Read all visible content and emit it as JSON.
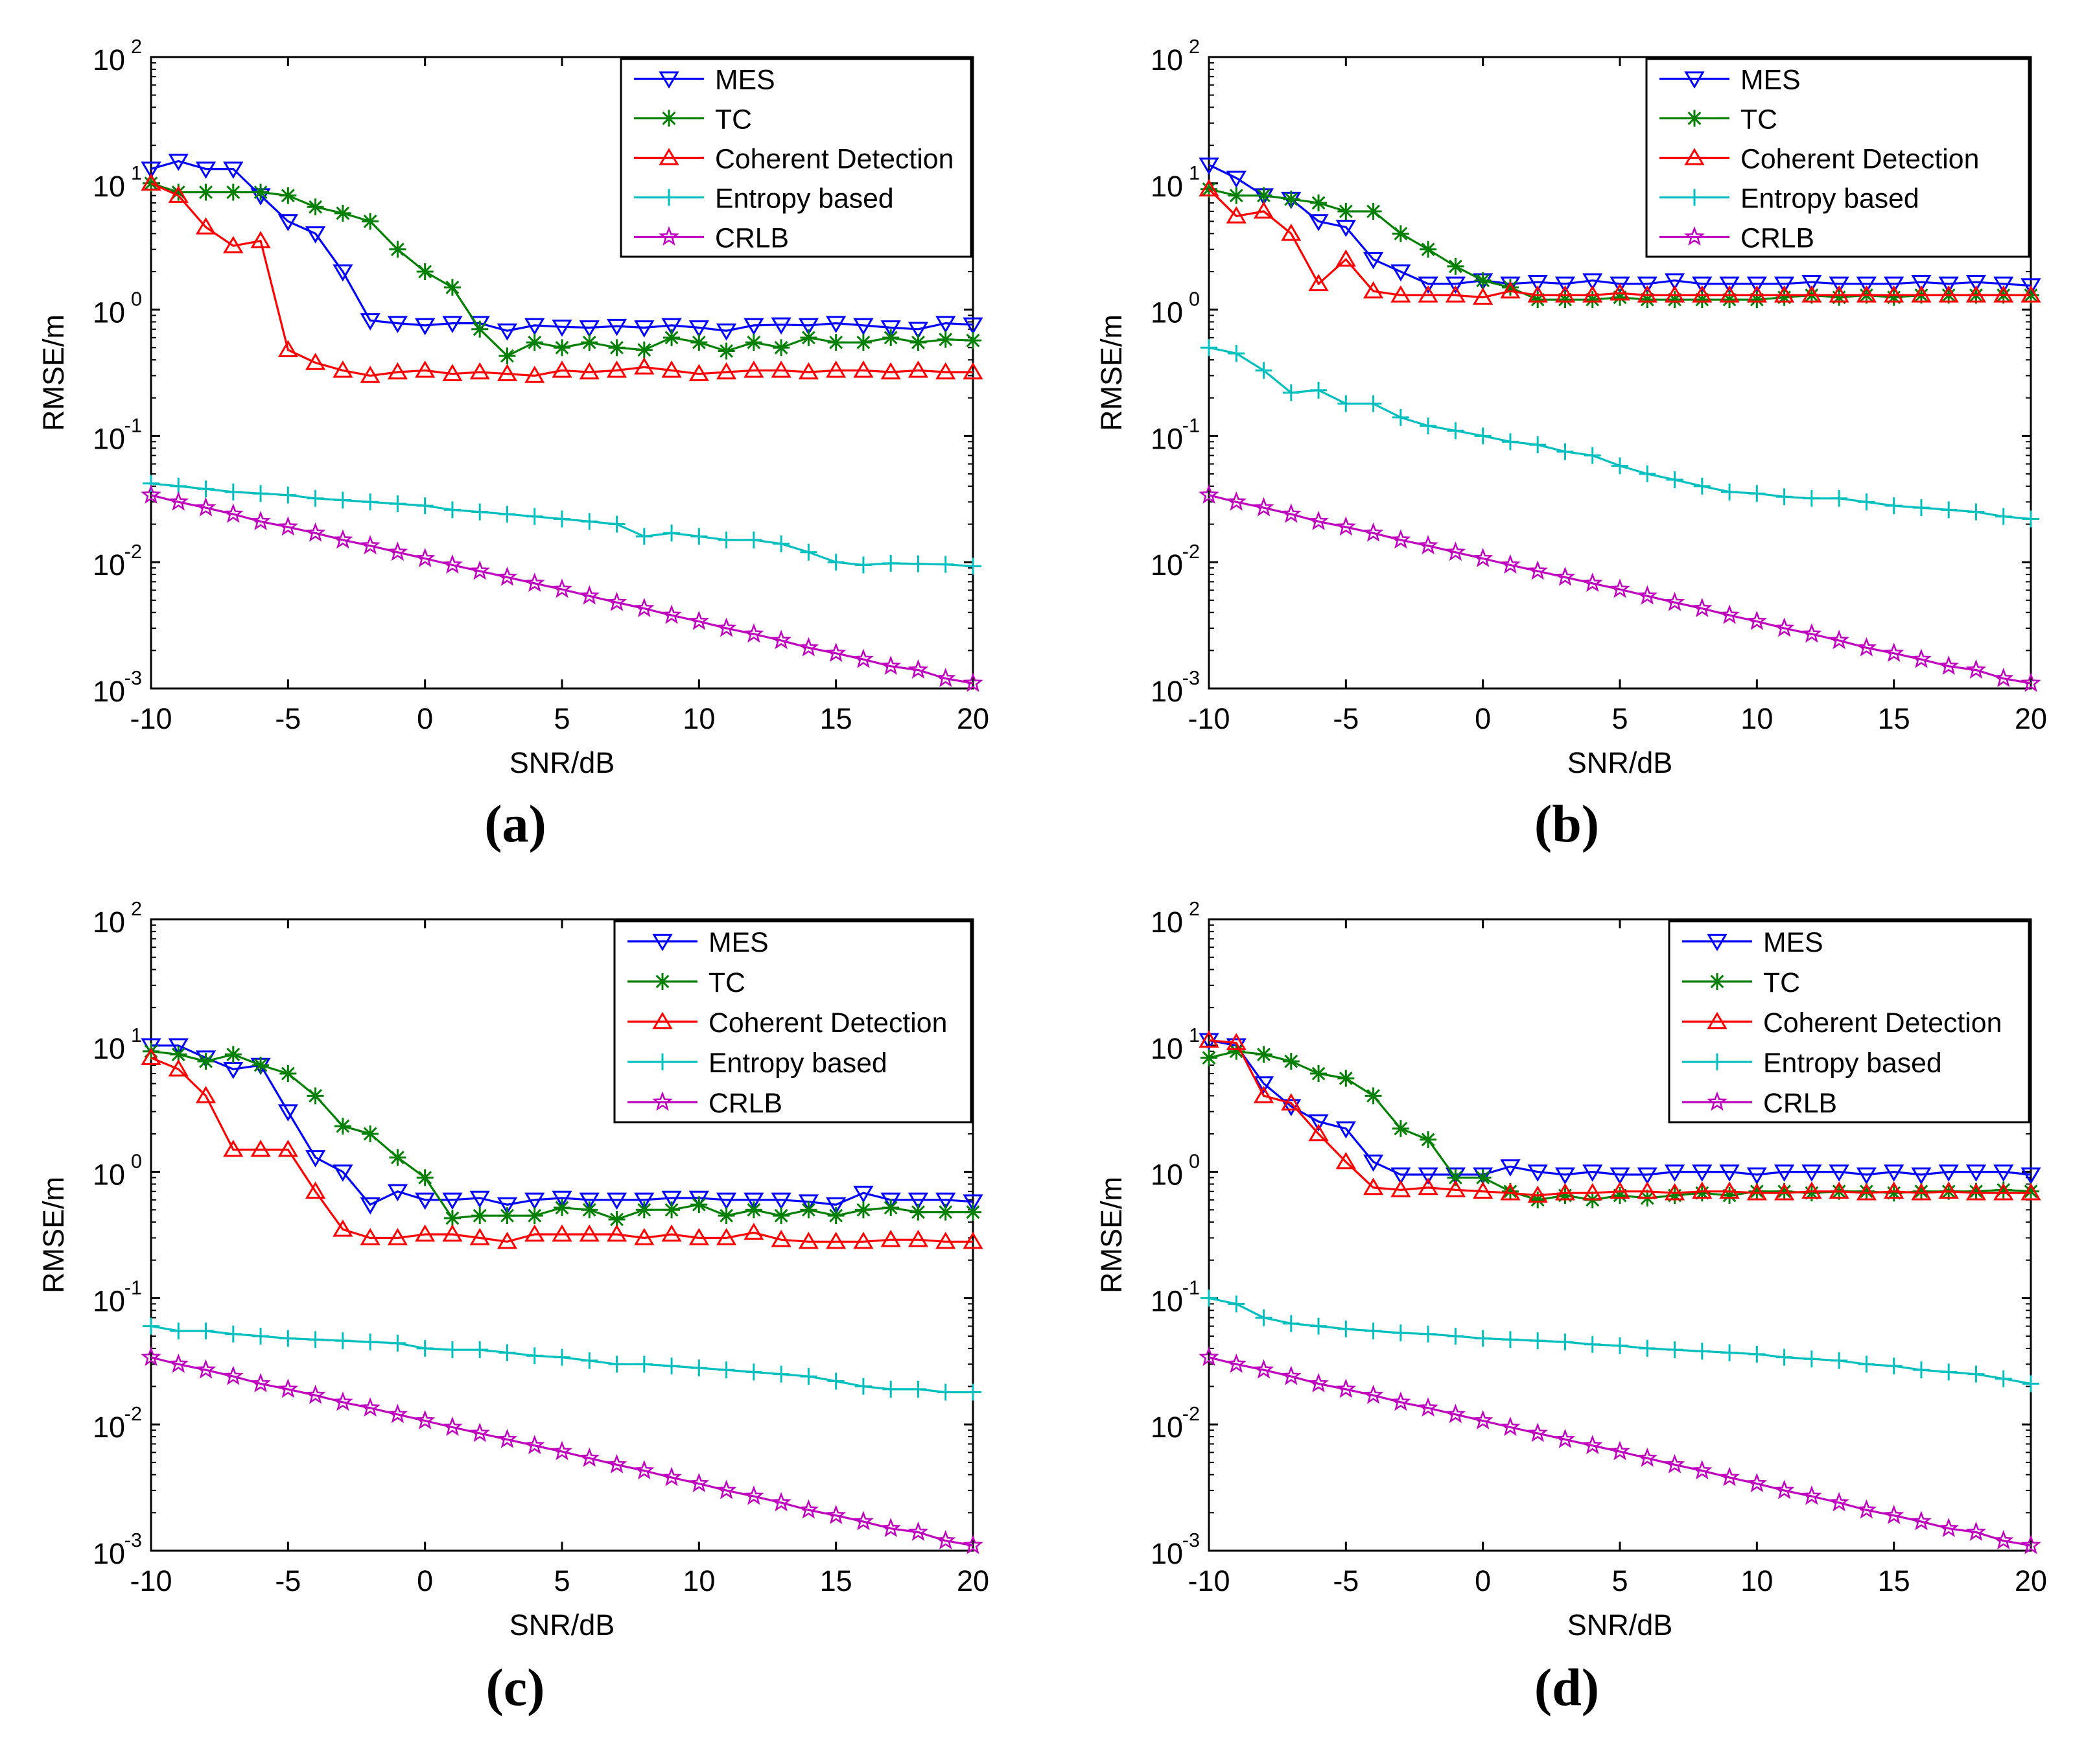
{
  "figure": {
    "panels": [
      "(a)",
      "(b)",
      "(c)",
      "(d)"
    ]
  },
  "series_styles": {
    "MES": {
      "color": "#0000ff",
      "marker": "triangle-down"
    },
    "TC": {
      "color": "#008000",
      "marker": "asterisk"
    },
    "Coherent Detection": {
      "color": "#ff0000",
      "marker": "triangle-up"
    },
    "Entropy based": {
      "color": "#00bfbf",
      "marker": "plus"
    },
    "CRLB": {
      "color": "#bf00bf",
      "marker": "pentagram"
    }
  },
  "chart_data": [
    {
      "panel": "(a)",
      "type": "line",
      "xlabel": "SNR/dB",
      "ylabel": "RMSE/m",
      "yscale": "log",
      "xlim": [
        -10,
        20
      ],
      "ylim": [
        0.001,
        100
      ],
      "xticks": [
        "-10",
        "-5",
        "0",
        "5",
        "10",
        "15",
        "20"
      ],
      "yticks": [
        {
          "base": "10",
          "exp": "-3"
        },
        {
          "base": "10",
          "exp": "-2"
        },
        {
          "base": "10",
          "exp": "-1"
        },
        {
          "base": "10",
          "exp": "0"
        },
        {
          "base": "10",
          "exp": "1"
        },
        {
          "base": "10",
          "exp": "2"
        }
      ],
      "legend_position": "top-right",
      "x": [
        -10,
        -9,
        -8,
        -7,
        -6,
        -5,
        -4,
        -3,
        -2,
        -1,
        0,
        1,
        2,
        3,
        4,
        5,
        6,
        7,
        8,
        9,
        10,
        11,
        12,
        13,
        14,
        15,
        16,
        17,
        18,
        19,
        20
      ],
      "series": [
        {
          "name": "MES",
          "values": [
            13,
            15,
            13,
            13,
            8,
            5,
            4,
            2,
            0.82,
            0.78,
            0.75,
            0.78,
            0.78,
            0.68,
            0.75,
            0.73,
            0.72,
            0.74,
            0.72,
            0.75,
            0.72,
            0.68,
            0.75,
            0.76,
            0.75,
            0.78,
            0.75,
            0.72,
            0.7,
            0.78,
            0.76
          ]
        },
        {
          "name": "TC",
          "values": [
            10,
            8.5,
            8.5,
            8.5,
            8.5,
            8,
            6.5,
            5.8,
            5,
            3,
            2,
            1.5,
            0.7,
            0.43,
            0.55,
            0.5,
            0.55,
            0.5,
            0.48,
            0.6,
            0.55,
            0.47,
            0.55,
            0.5,
            0.6,
            0.55,
            0.55,
            0.6,
            0.55,
            0.58,
            0.57
          ]
        },
        {
          "name": "Coherent Detection",
          "values": [
            10,
            8,
            4.5,
            3.2,
            3.5,
            0.48,
            0.38,
            0.33,
            0.3,
            0.32,
            0.33,
            0.31,
            0.32,
            0.31,
            0.3,
            0.33,
            0.32,
            0.33,
            0.35,
            0.33,
            0.31,
            0.32,
            0.33,
            0.33,
            0.32,
            0.33,
            0.33,
            0.32,
            0.33,
            0.32,
            0.32
          ]
        },
        {
          "name": "Entropy based",
          "values": [
            0.042,
            0.04,
            0.038,
            0.036,
            0.035,
            0.034,
            0.032,
            0.031,
            0.03,
            0.029,
            0.028,
            0.026,
            0.025,
            0.024,
            0.023,
            0.022,
            0.021,
            0.02,
            0.016,
            0.017,
            0.016,
            0.015,
            0.015,
            0.014,
            0.012,
            0.01,
            0.0095,
            0.0098,
            0.0097,
            0.0096,
            0.0093
          ]
        },
        {
          "name": "CRLB",
          "values": [
            0.034,
            0.03,
            0.027,
            0.024,
            0.021,
            0.019,
            0.017,
            0.015,
            0.0135,
            0.012,
            0.0107,
            0.0095,
            0.0085,
            0.0076,
            0.0068,
            0.0061,
            0.0054,
            0.0048,
            0.0043,
            0.0038,
            0.0034,
            0.003,
            0.0027,
            0.0024,
            0.0021,
            0.0019,
            0.0017,
            0.0015,
            0.0014,
            0.0012,
            0.0011
          ]
        }
      ]
    },
    {
      "panel": "(b)",
      "type": "line",
      "xlabel": "SNR/dB",
      "ylabel": "RMSE/m",
      "yscale": "log",
      "xlim": [
        -10,
        20
      ],
      "ylim": [
        0.001,
        100
      ],
      "xticks": [
        "-10",
        "-5",
        "0",
        "5",
        "10",
        "15",
        "20"
      ],
      "yticks": [
        {
          "base": "10",
          "exp": "-3"
        },
        {
          "base": "10",
          "exp": "-2"
        },
        {
          "base": "10",
          "exp": "-1"
        },
        {
          "base": "10",
          "exp": "0"
        },
        {
          "base": "10",
          "exp": "1"
        },
        {
          "base": "10",
          "exp": "2"
        }
      ],
      "legend_position": "top-right",
      "x": [
        -10,
        -9,
        -8,
        -7,
        -6,
        -5,
        -4,
        -3,
        -2,
        -1,
        0,
        1,
        2,
        3,
        4,
        5,
        6,
        7,
        8,
        9,
        10,
        11,
        12,
        13,
        14,
        15,
        16,
        17,
        18,
        19,
        20
      ],
      "series": [
        {
          "name": "MES",
          "values": [
            14,
            11,
            8,
            7.5,
            5,
            4.5,
            2.5,
            2,
            1.6,
            1.6,
            1.7,
            1.6,
            1.65,
            1.6,
            1.7,
            1.6,
            1.6,
            1.7,
            1.6,
            1.6,
            1.6,
            1.6,
            1.65,
            1.6,
            1.6,
            1.6,
            1.65,
            1.6,
            1.65,
            1.6,
            1.55
          ]
        },
        {
          "name": "TC",
          "values": [
            9,
            8,
            8,
            7.5,
            7,
            6,
            6,
            4,
            3,
            2.2,
            1.7,
            1.5,
            1.2,
            1.2,
            1.2,
            1.25,
            1.2,
            1.2,
            1.2,
            1.2,
            1.2,
            1.25,
            1.3,
            1.25,
            1.3,
            1.25,
            1.3,
            1.3,
            1.3,
            1.3,
            1.3
          ]
        },
        {
          "name": "Coherent Detection",
          "values": [
            9,
            5.5,
            6,
            4,
            1.6,
            2.5,
            1.4,
            1.3,
            1.3,
            1.3,
            1.25,
            1.4,
            1.3,
            1.3,
            1.3,
            1.35,
            1.3,
            1.3,
            1.3,
            1.3,
            1.3,
            1.3,
            1.3,
            1.3,
            1.3,
            1.3,
            1.3,
            1.3,
            1.3,
            1.3,
            1.3
          ]
        },
        {
          "name": "Entropy based",
          "values": [
            0.5,
            0.45,
            0.33,
            0.22,
            0.23,
            0.18,
            0.18,
            0.14,
            0.12,
            0.11,
            0.1,
            0.09,
            0.085,
            0.075,
            0.07,
            0.058,
            0.05,
            0.045,
            0.04,
            0.036,
            0.035,
            0.033,
            0.032,
            0.032,
            0.03,
            0.028,
            0.027,
            0.026,
            0.025,
            0.023,
            0.022
          ]
        },
        {
          "name": "CRLB",
          "values": [
            0.034,
            0.03,
            0.027,
            0.024,
            0.021,
            0.019,
            0.017,
            0.015,
            0.0135,
            0.012,
            0.0107,
            0.0095,
            0.0085,
            0.0076,
            0.0068,
            0.0061,
            0.0054,
            0.0048,
            0.0043,
            0.0038,
            0.0034,
            0.003,
            0.0027,
            0.0024,
            0.0021,
            0.0019,
            0.0017,
            0.0015,
            0.0014,
            0.0012,
            0.0011
          ]
        }
      ]
    },
    {
      "panel": "(c)",
      "type": "line",
      "xlabel": "SNR/dB",
      "ylabel": "RMSE/m",
      "yscale": "log",
      "xlim": [
        -10,
        20
      ],
      "ylim": [
        0.001,
        100
      ],
      "xticks": [
        "-10",
        "-5",
        "0",
        "5",
        "10",
        "15",
        "20"
      ],
      "yticks": [
        {
          "base": "10",
          "exp": "-3"
        },
        {
          "base": "10",
          "exp": "-2"
        },
        {
          "base": "10",
          "exp": "-1"
        },
        {
          "base": "10",
          "exp": "0"
        },
        {
          "base": "10",
          "exp": "1"
        },
        {
          "base": "10",
          "exp": "2"
        }
      ],
      "legend_position": "top-right",
      "x": [
        -10,
        -9,
        -8,
        -7,
        -6,
        -5,
        -4,
        -3,
        -2,
        -1,
        0,
        1,
        2,
        3,
        4,
        5,
        6,
        7,
        8,
        9,
        10,
        11,
        12,
        13,
        14,
        15,
        16,
        17,
        18,
        19,
        20
      ],
      "series": [
        {
          "name": "MES",
          "values": [
            10,
            10,
            8,
            6.5,
            7,
            3,
            1.3,
            1,
            0.55,
            0.7,
            0.6,
            0.6,
            0.62,
            0.55,
            0.6,
            0.62,
            0.6,
            0.6,
            0.6,
            0.62,
            0.62,
            0.6,
            0.6,
            0.6,
            0.58,
            0.55,
            0.68,
            0.6,
            0.6,
            0.6,
            0.58
          ]
        },
        {
          "name": "TC",
          "values": [
            9,
            8.5,
            7.5,
            8.5,
            7,
            6,
            4,
            2.3,
            2,
            1.3,
            0.9,
            0.43,
            0.45,
            0.45,
            0.45,
            0.52,
            0.5,
            0.42,
            0.5,
            0.5,
            0.55,
            0.45,
            0.5,
            0.45,
            0.5,
            0.45,
            0.5,
            0.52,
            0.48,
            0.48,
            0.48
          ]
        },
        {
          "name": "Coherent Detection",
          "values": [
            8,
            6.5,
            4,
            1.5,
            1.5,
            1.5,
            0.7,
            0.35,
            0.3,
            0.3,
            0.32,
            0.32,
            0.3,
            0.28,
            0.32,
            0.32,
            0.32,
            0.32,
            0.3,
            0.32,
            0.3,
            0.3,
            0.33,
            0.29,
            0.28,
            0.28,
            0.28,
            0.29,
            0.29,
            0.28,
            0.28
          ]
        },
        {
          "name": "Entropy based",
          "values": [
            0.06,
            0.055,
            0.055,
            0.052,
            0.05,
            0.048,
            0.047,
            0.046,
            0.045,
            0.044,
            0.04,
            0.039,
            0.039,
            0.037,
            0.035,
            0.034,
            0.032,
            0.03,
            0.03,
            0.029,
            0.028,
            0.027,
            0.026,
            0.025,
            0.024,
            0.022,
            0.02,
            0.019,
            0.019,
            0.018,
            0.018
          ]
        },
        {
          "name": "CRLB",
          "values": [
            0.034,
            0.03,
            0.027,
            0.024,
            0.021,
            0.019,
            0.017,
            0.015,
            0.0135,
            0.012,
            0.0107,
            0.0095,
            0.0085,
            0.0076,
            0.0068,
            0.0061,
            0.0054,
            0.0048,
            0.0043,
            0.0038,
            0.0034,
            0.003,
            0.0027,
            0.0024,
            0.0021,
            0.0019,
            0.0017,
            0.0015,
            0.0014,
            0.0012,
            0.0011
          ]
        }
      ]
    },
    {
      "panel": "(d)",
      "type": "line",
      "xlabel": "SNR/dB",
      "ylabel": "RMSE/m",
      "yscale": "log",
      "xlim": [
        -10,
        20
      ],
      "ylim": [
        0.001,
        100
      ],
      "xticks": [
        "-10",
        "-5",
        "0",
        "5",
        "10",
        "15",
        "20"
      ],
      "yticks": [
        {
          "base": "10",
          "exp": "-3"
        },
        {
          "base": "10",
          "exp": "-2"
        },
        {
          "base": "10",
          "exp": "-1"
        },
        {
          "base": "10",
          "exp": "0"
        },
        {
          "base": "10",
          "exp": "1"
        },
        {
          "base": "10",
          "exp": "2"
        }
      ],
      "legend_position": "top-right",
      "x": [
        -10,
        -9,
        -8,
        -7,
        -6,
        -5,
        -4,
        -3,
        -2,
        -1,
        0,
        1,
        2,
        3,
        4,
        5,
        6,
        7,
        8,
        9,
        10,
        11,
        12,
        13,
        14,
        15,
        16,
        17,
        18,
        19,
        20
      ],
      "series": [
        {
          "name": "MES",
          "values": [
            11,
            10,
            5,
            3.3,
            2.5,
            2.2,
            1.2,
            0.95,
            0.95,
            0.95,
            0.95,
            1.1,
            1,
            0.95,
            1,
            0.95,
            0.95,
            1,
            1,
            1,
            0.95,
            1,
            1,
            1,
            0.95,
            1,
            0.95,
            1,
            1,
            1,
            0.95
          ]
        },
        {
          "name": "TC",
          "values": [
            8,
            9,
            8.5,
            7.5,
            6,
            5.5,
            4,
            2.2,
            1.8,
            0.9,
            0.9,
            0.7,
            0.6,
            0.65,
            0.6,
            0.65,
            0.62,
            0.65,
            0.68,
            0.65,
            0.7,
            0.7,
            0.68,
            0.7,
            0.7,
            0.68,
            0.7,
            0.7,
            0.7,
            0.72,
            0.7
          ]
        },
        {
          "name": "Coherent Detection",
          "values": [
            11,
            10.5,
            4,
            3.5,
            2,
            1.2,
            0.75,
            0.72,
            0.75,
            0.72,
            0.7,
            0.68,
            0.65,
            0.68,
            0.68,
            0.7,
            0.7,
            0.68,
            0.7,
            0.7,
            0.68,
            0.68,
            0.7,
            0.7,
            0.68,
            0.7,
            0.68,
            0.7,
            0.68,
            0.68,
            0.68
          ]
        },
        {
          "name": "Entropy based",
          "values": [
            0.1,
            0.09,
            0.07,
            0.063,
            0.06,
            0.057,
            0.055,
            0.053,
            0.052,
            0.05,
            0.048,
            0.047,
            0.046,
            0.045,
            0.043,
            0.042,
            0.04,
            0.039,
            0.038,
            0.037,
            0.036,
            0.034,
            0.033,
            0.032,
            0.03,
            0.029,
            0.027,
            0.026,
            0.025,
            0.023,
            0.021
          ]
        },
        {
          "name": "CRLB",
          "values": [
            0.034,
            0.03,
            0.027,
            0.024,
            0.021,
            0.019,
            0.017,
            0.015,
            0.0135,
            0.012,
            0.0107,
            0.0095,
            0.0085,
            0.0076,
            0.0068,
            0.0061,
            0.0054,
            0.0048,
            0.0043,
            0.0038,
            0.0034,
            0.003,
            0.0027,
            0.0024,
            0.0021,
            0.0019,
            0.0017,
            0.0015,
            0.0014,
            0.0012,
            0.0011
          ]
        }
      ]
    }
  ]
}
